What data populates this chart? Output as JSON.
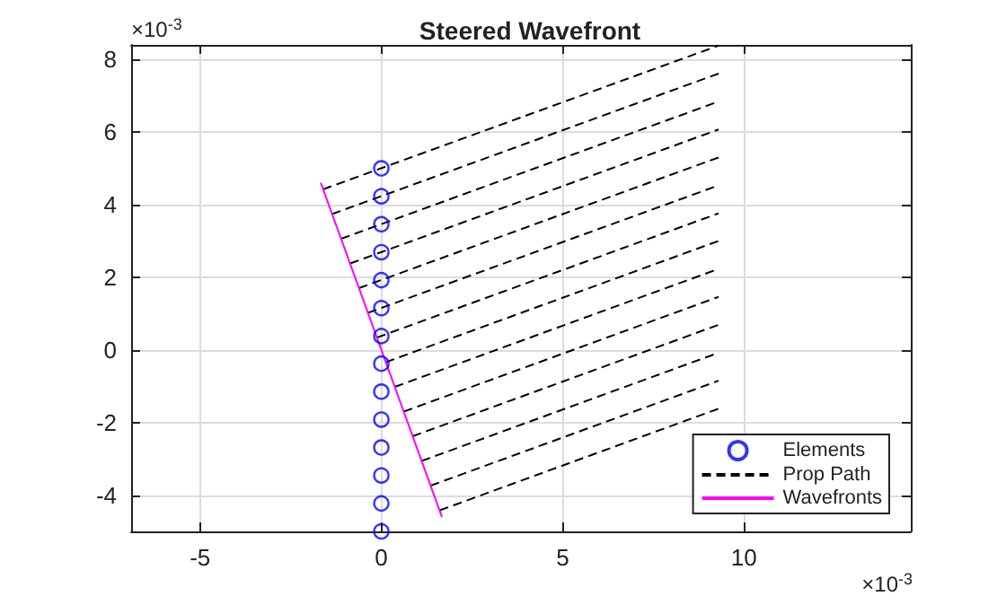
{
  "chart_data": {
    "type": "line",
    "title": "Steered Wavefront",
    "annotations": [
      "×10$^{-3}$",
      "×10$^{-3}$"
    ],
    "xlim": [
      -6.9,
      14.6
    ],
    "xticks": [
      -5,
      0,
      5,
      10
    ],
    "ylim": [
      -5,
      8.4
    ],
    "yticks": [
      -4,
      -2,
      0,
      2,
      4,
      6,
      8
    ],
    "grid": true,
    "legend": "bottom right",
    "series": [
      {
        "name": "Elements",
        "type": "scatter",
        "marker": "circle",
        "color": "#0000ff",
        "x": [
          0,
          0,
          0,
          0,
          0,
          0,
          0,
          0,
          0,
          0,
          0,
          0,
          0,
          0
        ],
        "values": [
          5,
          4.23,
          3.46,
          2.69,
          1.92,
          1.15,
          0.38,
          -0.38,
          -1.15,
          -1.92,
          -2.69,
          -3.46,
          -4.23,
          -5
        ]
      },
      {
        "name": "Prop Path",
        "line_style": "dashed",
        "color": "#000000",
        "x": [
          -1.61,
          9.3
        ],
        "values": [
          4.42,
          8.38
        ]
      },
      {
        "type": "line",
        "line_style": "dashed",
        "color": "#000000",
        "x": [
          -1.36,
          9.3
        ],
        "values": [
          3.74,
          7.61
        ]
      },
      {
        "type": "line",
        "line_style": "dashed",
        "color": "#000000",
        "x": [
          -1.11,
          9.3
        ],
        "values": [
          3.06,
          6.84
        ]
      },
      {
        "type": "line",
        "line_style": "dashed",
        "color": "#000000",
        "x": [
          -0.86,
          9.3
        ],
        "values": [
          2.38,
          6.07
        ]
      },
      {
        "type": "line",
        "line_style": "dashed",
        "color": "#000000",
        "x": [
          -0.62,
          9.3
        ],
        "values": [
          1.7,
          5.3
        ]
      },
      {
        "type": "line",
        "line_style": "dashed",
        "color": "#000000",
        "x": [
          -0.37,
          9.3
        ],
        "values": [
          1.02,
          4.53
        ]
      },
      {
        "type": "line",
        "line_style": "dashed",
        "color": "#000000",
        "x": [
          -0.12,
          9.3
        ],
        "values": [
          0.34,
          3.76
        ]
      },
      {
        "type": "line",
        "line_style": "dashed",
        "color": "#000000",
        "x": [
          0.12,
          9.3
        ],
        "values": [
          -0.34,
          3.0
        ]
      },
      {
        "type": "line",
        "line_style": "dashed",
        "color": "#000000",
        "x": [
          0.37,
          9.3
        ],
        "values": [
          -1.02,
          2.23
        ]
      },
      {
        "type": "line",
        "line_style": "dashed",
        "color": "#000000",
        "x": [
          0.62,
          9.3
        ],
        "values": [
          -1.7,
          1.46
        ]
      },
      {
        "type": "line",
        "line_style": "dashed",
        "color": "#000000",
        "x": [
          0.86,
          9.3
        ],
        "values": [
          -2.38,
          0.69
        ]
      },
      {
        "type": "line",
        "line_style": "dashed",
        "color": "#000000",
        "x": [
          1.11,
          9.3
        ],
        "values": [
          -3.06,
          -0.08
        ]
      },
      {
        "type": "line",
        "line_style": "dashed",
        "color": "#000000",
        "x": [
          1.36,
          9.3
        ],
        "values": [
          -3.74,
          -0.85
        ]
      },
      {
        "type": "line",
        "line_style": "dashed",
        "color": "#000000",
        "x": [
          1.61,
          9.3
        ],
        "values": [
          -4.42,
          -1.62
        ]
      },
      {
        "name": "Wavefronts",
        "line_style": "solid",
        "color": "#ff00ff",
        "x": [
          -1.67,
          1.67
        ],
        "values": [
          4.6,
          -4.6
        ]
      }
    ]
  }
}
